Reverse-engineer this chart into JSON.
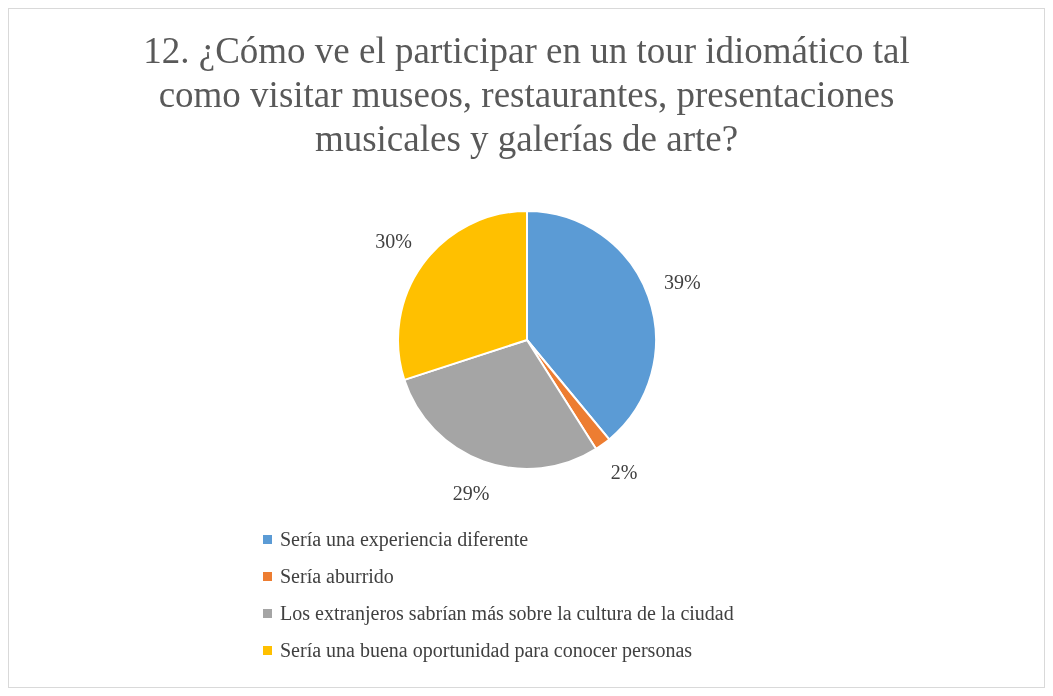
{
  "chart_data": {
    "type": "pie",
    "title": "12. ¿Cómo ve el participar en un tour idiomático tal como visitar museos, restaurantes, presentaciones musicales y galerías de arte?",
    "categories": [
      "Sería una experiencia diferente",
      "Sería aburrido",
      "Los extranjeros sabrían más sobre la cultura de la ciudad",
      "Sería una buena oportunidad para conocer personas"
    ],
    "values": [
      39,
      2,
      29,
      30
    ],
    "colors": [
      "#5b9bd5",
      "#ed7d31",
      "#a5a5a5",
      "#ffc000"
    ],
    "value_labels": [
      "39%",
      "2%",
      "29%",
      "30%"
    ],
    "legend": "bottom"
  }
}
